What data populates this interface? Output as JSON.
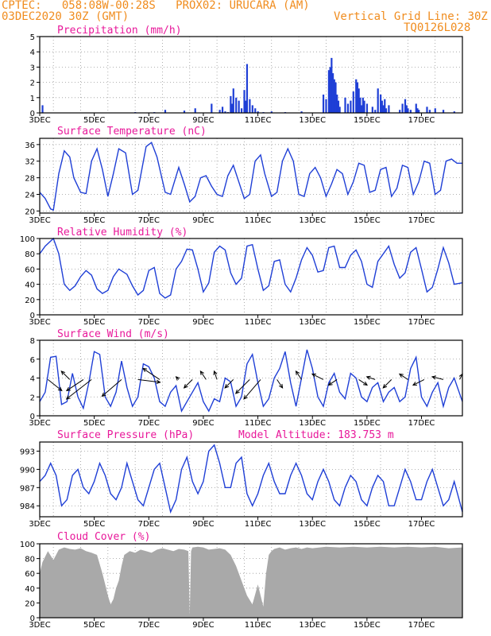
{
  "header": {
    "line1_left": "CPTEC:   058:08W-00:28S   PROX02: URUCARA (AM)",
    "line2_left": "03DEC2020 30Z (GMT)",
    "line2_right": "Vertical Grid Line: 30Z",
    "line3_right": "TQ0126L028",
    "model_altitude": "Model Altitude: 183.753 m"
  },
  "colors": {
    "header": "#f08c1e",
    "title": "#e8189a",
    "line": "#1f3fd6",
    "cloud": "#a9a9a9",
    "arrow": "#000000"
  },
  "x_axis": {
    "tick_labels": [
      "3DEC",
      "5DEC",
      "7DEC",
      "9DEC",
      "11DEC",
      "13DEC",
      "15DEC",
      "17DEC"
    ],
    "tick_days": [
      0,
      2,
      4,
      6,
      8,
      10,
      12,
      14
    ],
    "range_days": [
      0,
      15.5
    ]
  },
  "chart_data": [
    {
      "id": "precip",
      "type": "bar",
      "title": "Precipitation (mm/h)",
      "ylim": [
        0,
        5
      ],
      "yticks": [
        0,
        1,
        2,
        3,
        4,
        5
      ],
      "grid": true,
      "x_unit": "days since 3DEC 00Z",
      "x": [
        0.1,
        3.5,
        4.2,
        4.6,
        5.3,
        5.7,
        6.3,
        6.6,
        6.7,
        6.8,
        6.9,
        7.0,
        7.05,
        7.1,
        7.2,
        7.3,
        7.4,
        7.5,
        7.55,
        7.6,
        7.7,
        7.8,
        7.9,
        8.0,
        8.2,
        8.5,
        9.0,
        9.6,
        10.4,
        10.5,
        10.6,
        10.65,
        10.7,
        10.75,
        10.8,
        10.85,
        10.9,
        10.95,
        11.0,
        11.2,
        11.3,
        11.4,
        11.5,
        11.6,
        11.65,
        11.7,
        11.75,
        11.8,
        11.85,
        11.9,
        12.0,
        12.2,
        12.3,
        12.4,
        12.5,
        12.55,
        12.6,
        12.65,
        12.7,
        12.8,
        13.2,
        13.3,
        13.4,
        13.45,
        13.5,
        13.6,
        13.8,
        13.85,
        13.9,
        14.2,
        14.3,
        14.5,
        14.8,
        15.2
      ],
      "values": [
        0.5,
        0.05,
        0.05,
        0.2,
        0.15,
        0.3,
        0.6,
        0.2,
        0.4,
        0.1,
        0.05,
        1.1,
        0.6,
        1.6,
        1.0,
        0.8,
        0.3,
        1.5,
        0.8,
        3.2,
        0.9,
        0.5,
        0.3,
        0.1,
        0.05,
        0.1,
        0.05,
        0.1,
        1.2,
        0.9,
        2.8,
        3.0,
        3.6,
        2.6,
        2.2,
        2.0,
        1.2,
        0.8,
        0.4,
        1.0,
        0.6,
        0.8,
        1.4,
        2.2,
        2.0,
        1.6,
        1.0,
        0.5,
        1.0,
        0.8,
        0.6,
        0.4,
        0.2,
        1.6,
        1.2,
        0.8,
        0.5,
        0.9,
        0.3,
        0.5,
        0.2,
        0.6,
        0.9,
        0.5,
        0.3,
        0.2,
        0.6,
        0.3,
        0.2,
        0.4,
        0.2,
        0.3,
        0.2,
        0.1
      ]
    },
    {
      "id": "temp",
      "type": "line",
      "title": "Surface Temperature (nC)",
      "ylim": [
        19.5,
        37.5
      ],
      "yticks": [
        20,
        24,
        28,
        32,
        36
      ],
      "grid": true,
      "x_unit": "days since 3DEC 00Z",
      "x": [
        0,
        0.2,
        0.4,
        0.5,
        0.7,
        0.9,
        1.1,
        1.25,
        1.5,
        1.7,
        1.9,
        2.1,
        2.3,
        2.5,
        2.7,
        2.9,
        3.15,
        3.4,
        3.6,
        3.9,
        4.1,
        4.3,
        4.6,
        4.8,
        5.1,
        5.3,
        5.5,
        5.7,
        5.9,
        6.1,
        6.3,
        6.5,
        6.7,
        6.9,
        7.1,
        7.3,
        7.5,
        7.7,
        7.9,
        8.1,
        8.25,
        8.5,
        8.7,
        8.9,
        9.1,
        9.3,
        9.5,
        9.7,
        9.9,
        10.1,
        10.3,
        10.5,
        10.7,
        10.9,
        11.1,
        11.3,
        11.5,
        11.7,
        11.9,
        12.1,
        12.3,
        12.5,
        12.7,
        12.9,
        13.1,
        13.3,
        13.5,
        13.7,
        13.9,
        14.1,
        14.3,
        14.5,
        14.7,
        14.9,
        15.1,
        15.3,
        15.5
      ],
      "values": [
        24.5,
        23.0,
        20.5,
        20.2,
        29.0,
        34.5,
        33.0,
        28.0,
        24.5,
        24.2,
        32.0,
        35.0,
        30.0,
        23.5,
        29.0,
        35.0,
        34.0,
        24.0,
        25.0,
        35.5,
        36.5,
        33.0,
        24.5,
        24.0,
        30.5,
        26.5,
        22.2,
        23.5,
        28.0,
        28.5,
        26.0,
        24.0,
        23.5,
        28.5,
        31.0,
        27.0,
        23.0,
        24.0,
        32.0,
        33.5,
        29.0,
        23.5,
        24.5,
        32.0,
        35.0,
        32.0,
        24.0,
        23.5,
        29.0,
        30.5,
        28.0,
        23.5,
        26.5,
        30.0,
        29.0,
        24.0,
        27.0,
        31.5,
        31.0,
        24.5,
        25.0,
        30.0,
        30.5,
        23.5,
        25.5,
        31.0,
        30.5,
        24.0,
        27.0,
        32.0,
        31.5,
        24.0,
        25.0,
        32.0,
        32.5,
        31.5,
        31.5
      ]
    },
    {
      "id": "rh",
      "type": "line",
      "title": "Relative Humidity (%)",
      "ylim": [
        0,
        100
      ],
      "yticks": [
        0,
        20,
        40,
        60,
        80,
        100
      ],
      "grid": true,
      "x_unit": "days since 3DEC 00Z",
      "x": [
        0,
        0.2,
        0.5,
        0.7,
        0.9,
        1.1,
        1.3,
        1.5,
        1.7,
        1.9,
        2.1,
        2.3,
        2.5,
        2.7,
        2.9,
        3.2,
        3.4,
        3.6,
        3.8,
        4.0,
        4.2,
        4.4,
        4.6,
        4.8,
        5.0,
        5.2,
        5.4,
        5.6,
        5.8,
        6.0,
        6.2,
        6.4,
        6.6,
        6.8,
        7.0,
        7.2,
        7.4,
        7.6,
        7.8,
        8.0,
        8.2,
        8.4,
        8.6,
        8.8,
        9.0,
        9.2,
        9.4,
        9.6,
        9.8,
        10.0,
        10.2,
        10.4,
        10.6,
        10.8,
        11.0,
        11.2,
        11.4,
        11.6,
        11.8,
        12.0,
        12.2,
        12.4,
        12.6,
        12.8,
        13.0,
        13.2,
        13.4,
        13.6,
        13.8,
        14.0,
        14.2,
        14.4,
        14.6,
        14.8,
        15.0,
        15.2,
        15.5
      ],
      "values": [
        80,
        90,
        100,
        80,
        40,
        32,
        38,
        50,
        58,
        52,
        34,
        28,
        32,
        50,
        60,
        53,
        38,
        26,
        32,
        58,
        62,
        28,
        22,
        26,
        60,
        70,
        86,
        85,
        60,
        30,
        42,
        82,
        90,
        85,
        55,
        40,
        48,
        90,
        92,
        60,
        32,
        38,
        70,
        72,
        40,
        30,
        48,
        72,
        88,
        78,
        56,
        58,
        88,
        90,
        62,
        62,
        78,
        85,
        70,
        40,
        36,
        70,
        80,
        90,
        66,
        48,
        55,
        82,
        88,
        60,
        30,
        36,
        60,
        88,
        68,
        40,
        42
      ]
    },
    {
      "id": "wind",
      "type": "line",
      "title": "Surface Wind (m/s)",
      "ylim": [
        0,
        8
      ],
      "yticks": [
        0,
        2,
        4,
        6,
        8
      ],
      "grid": true,
      "x_unit": "days since 3DEC 00Z",
      "x": [
        0,
        0.2,
        0.4,
        0.6,
        0.8,
        1.0,
        1.2,
        1.4,
        1.6,
        1.8,
        2.0,
        2.2,
        2.4,
        2.6,
        2.8,
        3.0,
        3.2,
        3.4,
        3.6,
        3.8,
        4.0,
        4.2,
        4.4,
        4.6,
        4.8,
        5.0,
        5.2,
        5.4,
        5.6,
        5.8,
        6.0,
        6.2,
        6.4,
        6.6,
        6.8,
        7.0,
        7.2,
        7.4,
        7.6,
        7.8,
        8.0,
        8.2,
        8.4,
        8.6,
        8.8,
        9.0,
        9.2,
        9.4,
        9.6,
        9.8,
        10.0,
        10.2,
        10.4,
        10.6,
        10.8,
        11.0,
        11.2,
        11.4,
        11.6,
        11.8,
        12.0,
        12.2,
        12.4,
        12.6,
        12.8,
        13.0,
        13.2,
        13.4,
        13.6,
        13.8,
        14.0,
        14.2,
        14.4,
        14.6,
        14.8,
        15.0,
        15.2,
        15.5
      ],
      "values": [
        1.5,
        2.5,
        6.2,
        6.3,
        1.2,
        1.5,
        4.5,
        2.0,
        0.8,
        3.5,
        6.8,
        6.5,
        2.0,
        1.0,
        2.5,
        5.8,
        3.0,
        1.0,
        2.0,
        5.5,
        5.2,
        4.0,
        1.5,
        1.0,
        2.5,
        3.2,
        0.5,
        1.5,
        2.5,
        3.5,
        1.5,
        0.5,
        1.8,
        1.5,
        4.0,
        3.6,
        1.0,
        2.0,
        5.5,
        6.5,
        3.5,
        1.0,
        1.8,
        4.0,
        5.0,
        6.8,
        3.5,
        1.0,
        4.0,
        7.0,
        5.0,
        2.0,
        1.0,
        3.5,
        4.5,
        2.5,
        1.8,
        4.5,
        4.0,
        2.0,
        1.5,
        3.0,
        3.5,
        1.5,
        2.5,
        3.0,
        1.5,
        2.0,
        5.0,
        6.2,
        2.0,
        1.0,
        2.5,
        3.5,
        1.0,
        3.0,
        4.0,
        1.5
      ],
      "arrows": {
        "x": [
          0.3,
          1.1,
          1.6,
          1.9,
          3.0,
          3.6,
          4.4,
          5.1,
          5.6,
          6.1,
          6.5,
          7.1,
          7.7,
          8.1,
          8.7,
          9.6,
          10.4,
          10.9,
          11.7,
          12.3,
          12.9,
          13.5,
          14.1,
          14.8,
          15.4
        ],
        "u": [
          2.5,
          -1.5,
          -3.0,
          -4.5,
          -3.5,
          4.0,
          -3.0,
          -0.5,
          -1.5,
          -1.0,
          -0.5,
          -1.5,
          -2.5,
          -3.0,
          1.0,
          -1.0,
          -2.0,
          -1.5,
          1.5,
          -1.5,
          -1.5,
          -1.5,
          -2.0,
          -2.0,
          0.5
        ],
        "v": [
          -2.0,
          1.5,
          -2.0,
          -3.5,
          -3.0,
          -0.5,
          2.0,
          0.5,
          -1.5,
          1.5,
          1.5,
          -1.5,
          -2.5,
          -3.5,
          -1.5,
          1.5,
          1.0,
          -1.0,
          -1.0,
          0.5,
          -1.5,
          1.0,
          -1.0,
          0.5,
          1.0
        ]
      }
    },
    {
      "id": "press",
      "type": "line",
      "title": "Surface Pressure (hPa)",
      "ylim": [
        982.2,
        994.5
      ],
      "yticks": [
        984,
        987,
        990,
        993
      ],
      "grid": true,
      "x_unit": "days since 3DEC 00Z",
      "x": [
        0,
        0.2,
        0.4,
        0.6,
        0.8,
        1.0,
        1.2,
        1.4,
        1.6,
        1.8,
        2.0,
        2.2,
        2.4,
        2.6,
        2.8,
        3.0,
        3.2,
        3.4,
        3.6,
        3.8,
        4.0,
        4.2,
        4.4,
        4.6,
        4.8,
        5.0,
        5.2,
        5.4,
        5.6,
        5.8,
        6.0,
        6.2,
        6.4,
        6.6,
        6.8,
        7.0,
        7.2,
        7.4,
        7.6,
        7.8,
        8.0,
        8.2,
        8.4,
        8.6,
        8.8,
        9.0,
        9.2,
        9.4,
        9.6,
        9.8,
        10.0,
        10.2,
        10.4,
        10.6,
        10.8,
        11.0,
        11.2,
        11.4,
        11.6,
        11.8,
        12.0,
        12.2,
        12.4,
        12.6,
        12.8,
        13.0,
        13.2,
        13.4,
        13.6,
        13.8,
        14.0,
        14.2,
        14.4,
        14.6,
        14.8,
        15.0,
        15.2,
        15.5
      ],
      "values": [
        988,
        989,
        991,
        989,
        984,
        985,
        989,
        990,
        987,
        986,
        988,
        991,
        989,
        986,
        985,
        987,
        991,
        988,
        985,
        984,
        987,
        990,
        991,
        987,
        983,
        985,
        990,
        992,
        988,
        986,
        988,
        993,
        994,
        991,
        987,
        987,
        991,
        992,
        986,
        984,
        986,
        989,
        991,
        988,
        986,
        986,
        989,
        991,
        989,
        986,
        985,
        988,
        990,
        988,
        985,
        984,
        987,
        989,
        988,
        985,
        984,
        987,
        989,
        988,
        984,
        984,
        987,
        990,
        988,
        985,
        985,
        988,
        990,
        987,
        984,
        985,
        988,
        983
      ]
    },
    {
      "id": "cloud",
      "type": "area",
      "title": "Cloud Cover (%)",
      "ylim": [
        0,
        100
      ],
      "yticks": [
        0,
        20,
        40,
        60,
        80,
        100
      ],
      "grid": true,
      "x_unit": "days since 3DEC 00Z",
      "x": [
        0,
        0.1,
        0.3,
        0.5,
        0.7,
        0.9,
        1.1,
        1.3,
        1.5,
        1.7,
        1.9,
        2.1,
        2.3,
        2.4,
        2.5,
        2.6,
        2.7,
        2.8,
        2.9,
        3.0,
        3.1,
        3.3,
        3.5,
        3.7,
        3.9,
        4.1,
        4.3,
        4.5,
        4.7,
        4.9,
        5.1,
        5.3,
        5.45,
        5.5,
        5.55,
        5.6,
        5.8,
        6.0,
        6.2,
        6.4,
        6.6,
        6.8,
        7.0,
        7.2,
        7.4,
        7.6,
        7.8,
        8.0,
        8.1,
        8.2,
        8.3,
        8.4,
        8.5,
        8.6,
        8.8,
        9.0,
        9.2,
        9.4,
        9.6,
        9.8,
        10.0,
        10.5,
        11.0,
        11.5,
        12.0,
        12.5,
        13.0,
        13.5,
        14.0,
        14.5,
        15.0,
        15.5
      ],
      "values": [
        60,
        75,
        90,
        78,
        92,
        95,
        93,
        92,
        94,
        90,
        88,
        85,
        60,
        45,
        30,
        18,
        25,
        40,
        50,
        70,
        85,
        90,
        88,
        92,
        90,
        88,
        92,
        94,
        92,
        90,
        93,
        92,
        90,
        3,
        90,
        95,
        96,
        95,
        92,
        93,
        94,
        92,
        85,
        70,
        50,
        30,
        18,
        45,
        30,
        15,
        60,
        85,
        90,
        93,
        95,
        92,
        94,
        95,
        93,
        95,
        94,
        96,
        95,
        96,
        95,
        96,
        95,
        96,
        95,
        96,
        94,
        95
      ]
    }
  ]
}
